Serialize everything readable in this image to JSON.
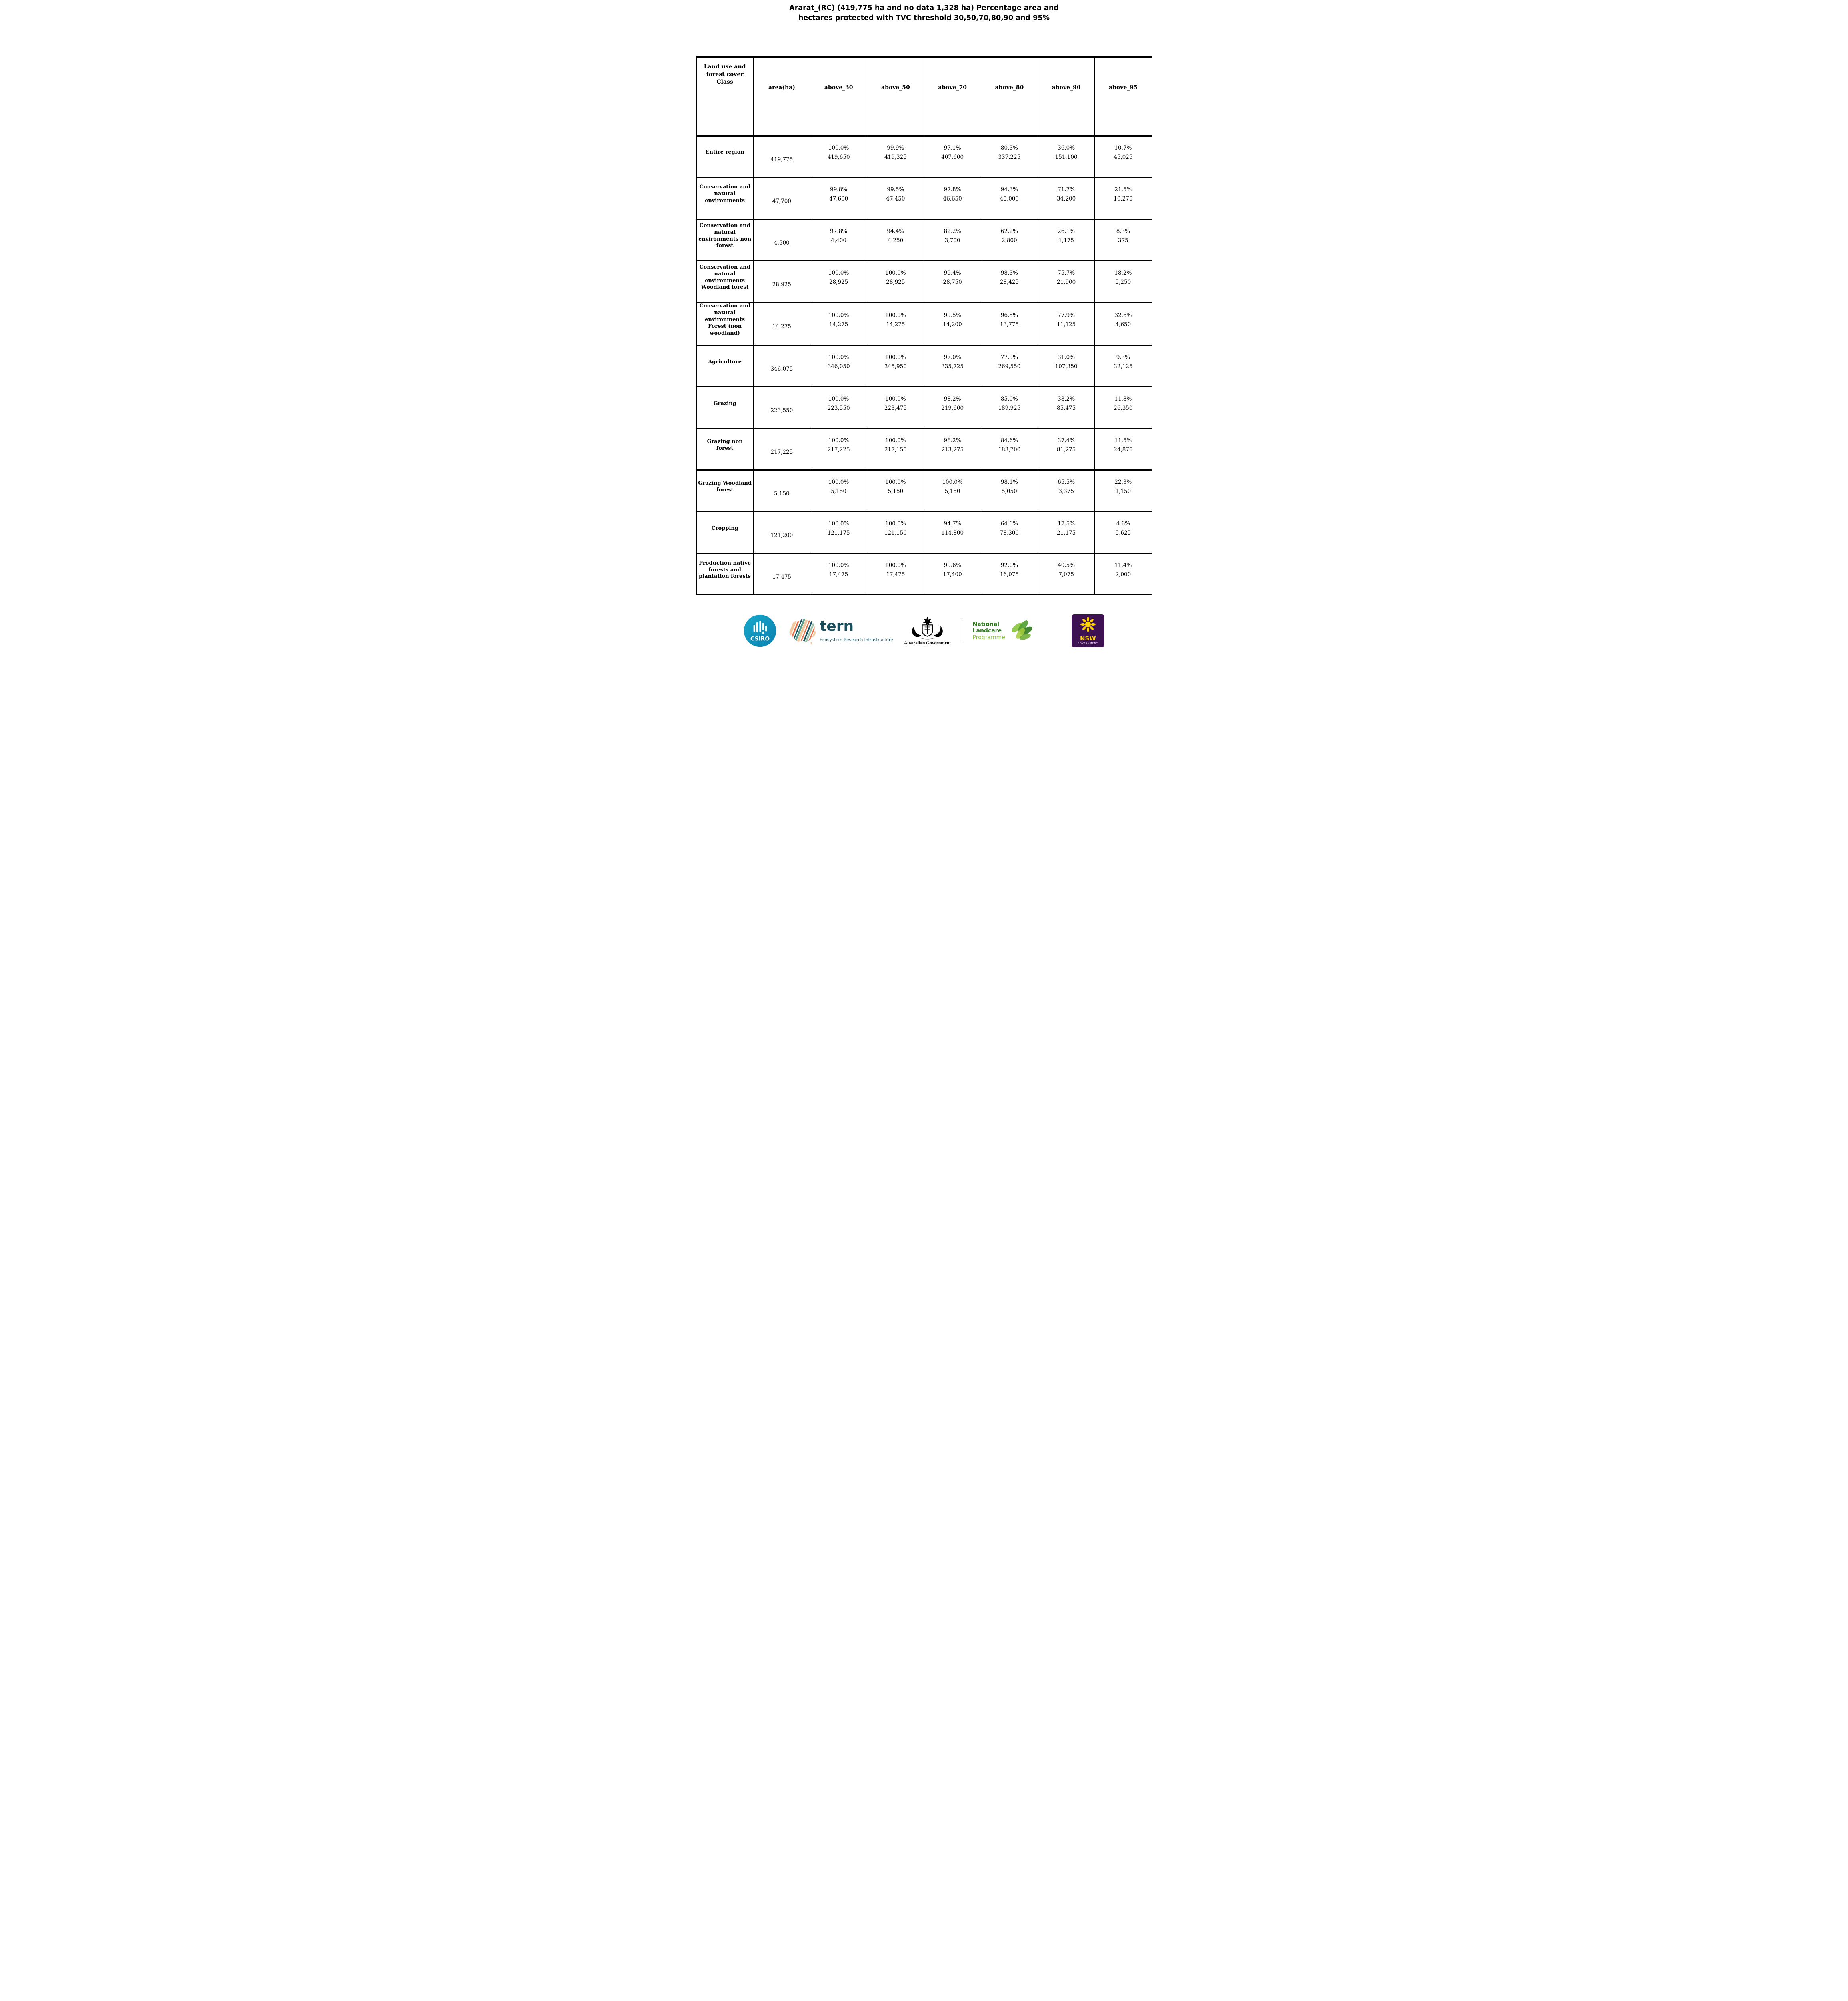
{
  "title": {
    "line1": "Ararat_(RC) (419,775 ha and no data 1,328 ha) Percentage area and",
    "line2": "hectares protected with TVC threshold 30,50,70,80,90 and 95%"
  },
  "table": {
    "col_headers": [
      "Land use and forest cover Class",
      "area(ha)",
      "above_30",
      "above_50",
      "above_70",
      "above_80",
      "above_90",
      "above_95"
    ],
    "rows": [
      {
        "label": "Entire region",
        "area": "419,775",
        "cells": [
          {
            "pct": "100.0%",
            "ha": "419,650"
          },
          {
            "pct": "99.9%",
            "ha": "419,325"
          },
          {
            "pct": "97.1%",
            "ha": "407,600"
          },
          {
            "pct": "80.3%",
            "ha": "337,225"
          },
          {
            "pct": "36.0%",
            "ha": "151,100"
          },
          {
            "pct": "10.7%",
            "ha": "45,025"
          }
        ]
      },
      {
        "label": "Conservation and natural environments",
        "area": "47,700",
        "cells": [
          {
            "pct": "99.8%",
            "ha": "47,600"
          },
          {
            "pct": "99.5%",
            "ha": "47,450"
          },
          {
            "pct": "97.8%",
            "ha": "46,650"
          },
          {
            "pct": "94.3%",
            "ha": "45,000"
          },
          {
            "pct": "71.7%",
            "ha": "34,200"
          },
          {
            "pct": "21.5%",
            "ha": "10,275"
          }
        ]
      },
      {
        "label": "Conservation and natural environments non forest",
        "area": "4,500",
        "cells": [
          {
            "pct": "97.8%",
            "ha": "4,400"
          },
          {
            "pct": "94.4%",
            "ha": "4,250"
          },
          {
            "pct": "82.2%",
            "ha": "3,700"
          },
          {
            "pct": "62.2%",
            "ha": "2,800"
          },
          {
            "pct": "26.1%",
            "ha": "1,175"
          },
          {
            "pct": "8.3%",
            "ha": "375"
          }
        ]
      },
      {
        "label": "Conservation and natural environments Woodland forest",
        "area": "28,925",
        "cells": [
          {
            "pct": "100.0%",
            "ha": "28,925"
          },
          {
            "pct": "100.0%",
            "ha": "28,925"
          },
          {
            "pct": "99.4%",
            "ha": "28,750"
          },
          {
            "pct": "98.3%",
            "ha": "28,425"
          },
          {
            "pct": "75.7%",
            "ha": "21,900"
          },
          {
            "pct": "18.2%",
            "ha": "5,250"
          }
        ]
      },
      {
        "label": "Conservation and natural environments Forest (non woodland)",
        "area": "14,275",
        "cells": [
          {
            "pct": "100.0%",
            "ha": "14,275"
          },
          {
            "pct": "100.0%",
            "ha": "14,275"
          },
          {
            "pct": "99.5%",
            "ha": "14,200"
          },
          {
            "pct": "96.5%",
            "ha": "13,775"
          },
          {
            "pct": "77.9%",
            "ha": "11,125"
          },
          {
            "pct": "32.6%",
            "ha": "4,650"
          }
        ]
      },
      {
        "label": "Agriculture",
        "area": "346,075",
        "cells": [
          {
            "pct": "100.0%",
            "ha": "346,050"
          },
          {
            "pct": "100.0%",
            "ha": "345,950"
          },
          {
            "pct": "97.0%",
            "ha": "335,725"
          },
          {
            "pct": "77.9%",
            "ha": "269,550"
          },
          {
            "pct": "31.0%",
            "ha": "107,350"
          },
          {
            "pct": "9.3%",
            "ha": "32,125"
          }
        ]
      },
      {
        "label": "Grazing",
        "area": "223,550",
        "cells": [
          {
            "pct": "100.0%",
            "ha": "223,550"
          },
          {
            "pct": "100.0%",
            "ha": "223,475"
          },
          {
            "pct": "98.2%",
            "ha": "219,600"
          },
          {
            "pct": "85.0%",
            "ha": "189,925"
          },
          {
            "pct": "38.2%",
            "ha": "85,475"
          },
          {
            "pct": "11.8%",
            "ha": "26,350"
          }
        ]
      },
      {
        "label": "Grazing non forest",
        "area": "217,225",
        "cells": [
          {
            "pct": "100.0%",
            "ha": "217,225"
          },
          {
            "pct": "100.0%",
            "ha": "217,150"
          },
          {
            "pct": "98.2%",
            "ha": "213,275"
          },
          {
            "pct": "84.6%",
            "ha": "183,700"
          },
          {
            "pct": "37.4%",
            "ha": "81,275"
          },
          {
            "pct": "11.5%",
            "ha": "24,875"
          }
        ]
      },
      {
        "label": "Grazing Woodland forest",
        "area": "5,150",
        "cells": [
          {
            "pct": "100.0%",
            "ha": "5,150"
          },
          {
            "pct": "100.0%",
            "ha": "5,150"
          },
          {
            "pct": "100.0%",
            "ha": "5,150"
          },
          {
            "pct": "98.1%",
            "ha": "5,050"
          },
          {
            "pct": "65.5%",
            "ha": "3,375"
          },
          {
            "pct": "22.3%",
            "ha": "1,150"
          }
        ]
      },
      {
        "label": "Cropping",
        "area": "121,200",
        "cells": [
          {
            "pct": "100.0%",
            "ha": "121,175"
          },
          {
            "pct": "100.0%",
            "ha": "121,150"
          },
          {
            "pct": "94.7%",
            "ha": "114,800"
          },
          {
            "pct": "64.6%",
            "ha": "78,300"
          },
          {
            "pct": "17.5%",
            "ha": "21,175"
          },
          {
            "pct": "4.6%",
            "ha": "5,625"
          }
        ]
      },
      {
        "label": "Production native forests and plantation forests",
        "area": "17,475",
        "cells": [
          {
            "pct": "100.0%",
            "ha": "17,475"
          },
          {
            "pct": "100.0%",
            "ha": "17,475"
          },
          {
            "pct": "99.6%",
            "ha": "17,400"
          },
          {
            "pct": "92.0%",
            "ha": "16,075"
          },
          {
            "pct": "40.5%",
            "ha": "7,075"
          },
          {
            "pct": "11.4%",
            "ha": "2,000"
          }
        ]
      }
    ]
  },
  "footer": {
    "csiro": {
      "label": "CSIRO"
    },
    "tern": {
      "label": "tern",
      "subtitle": "Ecosystem Research Infrastructure"
    },
    "aus_gov": {
      "label": "Australian Government"
    },
    "landcare": {
      "line1": "National",
      "line2": "Landcare",
      "line3": "Programme"
    },
    "nsw": {
      "label": "NSW",
      "sublabel": "GOVERNMENT"
    },
    "colors": {
      "csiro_teal": "#00a0c6",
      "tern_dark": "#1a4f5e",
      "tern_orange": "#e8714b",
      "tern_peach": "#f4c9a0",
      "tern_green": "#5ba08e",
      "landcare_green": "#2f7a1d",
      "landcare_light_green": "#8bc53f",
      "nsw_purple": "#3e1152",
      "nsw_yellow": "#ffd200"
    }
  }
}
